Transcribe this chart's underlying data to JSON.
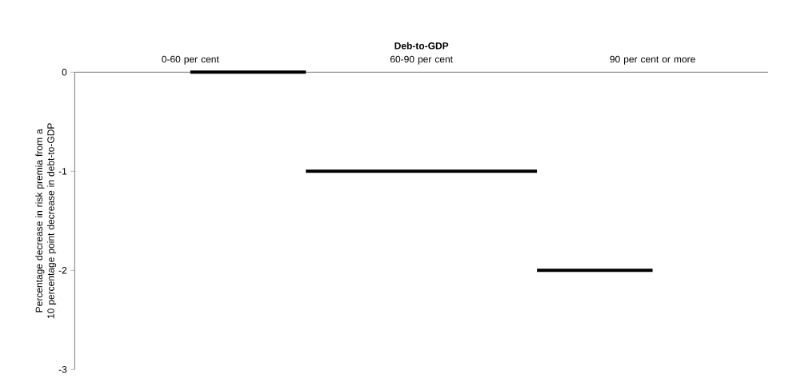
{
  "chart_data": {
    "type": "step",
    "xlabel": "Deb-to-GDP",
    "ylabel": "Percentage decrease in risk premia from a 10 percentage point decrease in debt-to-GDP",
    "categories": [
      "0-60 per cent",
      "60-90 per cent",
      "90 per cent or more"
    ],
    "values": [
      0,
      -1,
      -2
    ],
    "color": "#000000",
    "ylim": [
      -3,
      0
    ],
    "yticks": [
      0,
      -1,
      -2,
      -3
    ],
    "grid": false
  }
}
